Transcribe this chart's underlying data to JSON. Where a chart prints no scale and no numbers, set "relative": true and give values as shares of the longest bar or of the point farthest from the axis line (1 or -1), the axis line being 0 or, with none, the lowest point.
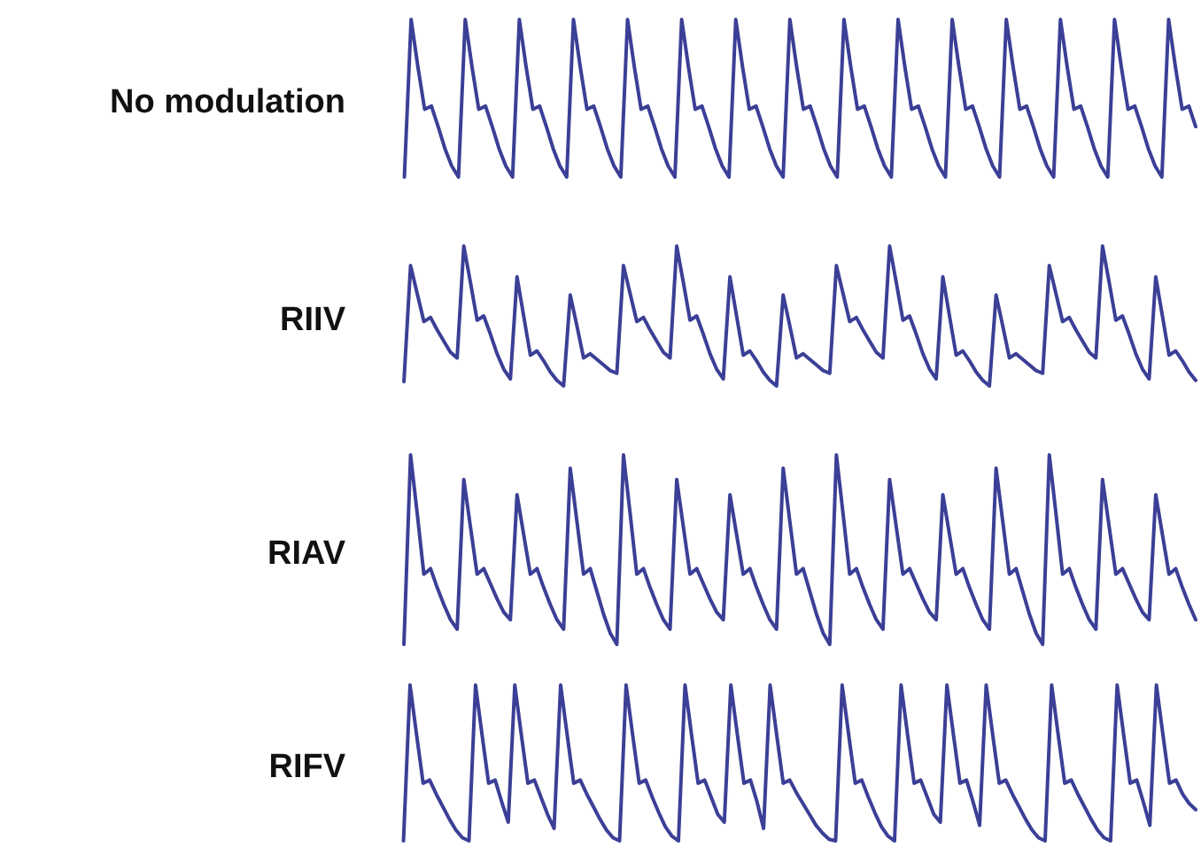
{
  "chart_data": [
    {
      "type": "line",
      "title": "No modulation",
      "relative": true,
      "marker": "none",
      "categories": [
        null,
        null,
        null,
        null,
        null,
        null,
        null,
        null,
        null,
        null,
        null,
        null,
        null,
        null,
        null,
        null,
        null,
        null,
        null,
        null,
        null,
        null,
        null,
        null,
        null,
        null,
        null,
        null,
        null,
        null,
        null,
        null,
        null,
        null,
        null,
        null,
        null,
        null,
        null,
        null,
        null,
        null,
        null,
        null,
        null,
        null,
        null,
        null,
        null,
        null,
        null,
        null,
        null,
        null,
        null,
        null,
        null,
        null,
        null,
        null,
        null,
        null,
        null,
        null,
        null,
        null,
        null,
        null,
        null,
        null,
        null,
        null,
        null,
        null,
        null,
        null,
        null,
        null,
        null,
        null,
        null,
        null,
        null,
        null,
        null,
        null,
        null,
        null,
        null,
        null,
        null,
        null,
        null,
        null,
        null,
        null,
        null,
        null,
        null,
        null,
        null,
        null,
        null,
        null,
        null,
        null,
        null,
        null,
        null,
        null,
        null,
        null,
        null,
        null,
        null,
        null,
        null,
        null,
        null,
        null,
        null,
        null
      ],
      "series": [
        {
          "color": "#3b3f96",
          "values": [
            null,
            null,
            null,
            null,
            0,
            1,
            0.7,
            0.43,
            0.45,
            0.32,
            0.18,
            0.07,
            0,
            1,
            0.7,
            0.43,
            0.45,
            0.32,
            0.18,
            0.07,
            0,
            1,
            0.7,
            0.43,
            0.45,
            0.32,
            0.18,
            0.07,
            0,
            1,
            0.7,
            0.43,
            0.45,
            0.32,
            0.18,
            0.07,
            0,
            1,
            0.7,
            0.43,
            0.45,
            0.32,
            0.18,
            0.07,
            0,
            1,
            0.7,
            0.43,
            0.45,
            0.32,
            0.18,
            0.07,
            0,
            1,
            0.7,
            0.43,
            0.45,
            0.32,
            0.18,
            0.07,
            0,
            1,
            0.7,
            0.43,
            0.45,
            0.32,
            0.18,
            0.07,
            0,
            1,
            0.7,
            0.43,
            0.45,
            0.32,
            0.18,
            0.07,
            0,
            1,
            0.7,
            0.43,
            0.45,
            0.32,
            0.18,
            0.07,
            0,
            1,
            0.7,
            0.43,
            0.45,
            0.32,
            0.18,
            0.07,
            0,
            1,
            0.7,
            0.43,
            0.45,
            0.32,
            0.18,
            0.07,
            0,
            1,
            0.7,
            0.43,
            0.45,
            0.32,
            0.18,
            0.07,
            0,
            1,
            0.7,
            0.43,
            0.45,
            0.32,
            0.18,
            0.07,
            0,
            1,
            0.7,
            0.43,
            0.45,
            0.32
          ]
        }
      ]
    },
    {
      "type": "line",
      "title": "RIIV",
      "relative": true,
      "marker": "none",
      "categories": [
        null,
        null,
        null,
        null,
        null,
        null,
        null,
        null,
        null,
        null,
        null,
        null,
        null,
        null,
        null,
        null,
        null,
        null,
        null,
        null,
        null,
        null,
        null,
        null,
        null,
        null,
        null,
        null,
        null,
        null,
        null,
        null,
        null,
        null,
        null,
        null,
        null,
        null,
        null,
        null,
        null,
        null,
        null,
        null,
        null,
        null,
        null,
        null,
        null,
        null,
        null,
        null,
        null,
        null,
        null,
        null,
        null,
        null,
        null,
        null,
        null,
        null,
        null,
        null,
        null,
        null,
        null,
        null,
        null,
        null,
        null,
        null,
        null,
        null,
        null,
        null,
        null,
        null,
        null,
        null,
        null,
        null,
        null,
        null,
        null,
        null,
        null,
        null,
        null,
        null,
        null,
        null,
        null,
        null,
        null,
        null,
        null,
        null,
        null,
        null,
        null,
        null,
        null,
        null,
        null,
        null,
        null,
        null,
        null,
        null,
        null,
        null,
        null,
        null,
        null,
        null,
        null,
        null,
        null,
        null,
        null,
        null,
        null,
        null
      ],
      "series": [
        {
          "color": "#3b3f96",
          "values": [
            null,
            null,
            null,
            null,
            0.03,
            0.86,
            0.66,
            0.46,
            0.49,
            0.4,
            0.32,
            0.24,
            0.2,
            1,
            0.74,
            0.47,
            0.5,
            0.37,
            0.23,
            0.12,
            0.05,
            0.78,
            0.5,
            0.22,
            0.25,
            0.18,
            0.1,
            0.04,
            0,
            0.65,
            0.43,
            0.2,
            0.23,
            0.19,
            0.15,
            0.11,
            0.09,
            0.86,
            0.66,
            0.46,
            0.49,
            0.4,
            0.32,
            0.24,
            0.2,
            1,
            0.74,
            0.47,
            0.5,
            0.37,
            0.23,
            0.12,
            0.05,
            0.78,
            0.5,
            0.22,
            0.25,
            0.18,
            0.1,
            0.04,
            0,
            0.65,
            0.43,
            0.2,
            0.23,
            0.19,
            0.15,
            0.11,
            0.09,
            0.86,
            0.66,
            0.46,
            0.49,
            0.4,
            0.32,
            0.24,
            0.2,
            1,
            0.74,
            0.47,
            0.5,
            0.37,
            0.23,
            0.12,
            0.05,
            0.78,
            0.5,
            0.22,
            0.25,
            0.18,
            0.1,
            0.04,
            0,
            0.65,
            0.43,
            0.2,
            0.23,
            0.19,
            0.15,
            0.11,
            0.09,
            0.86,
            0.66,
            0.46,
            0.49,
            0.4,
            0.32,
            0.24,
            0.2,
            1,
            0.74,
            0.47,
            0.5,
            0.37,
            0.23,
            0.12,
            0.05,
            0.78,
            0.5,
            0.22,
            0.25,
            0.18,
            0.1,
            0.04
          ]
        }
      ]
    },
    {
      "type": "line",
      "title": "RIAV",
      "relative": true,
      "marker": "none",
      "categories": [
        null,
        null,
        null,
        null,
        null,
        null,
        null,
        null,
        null,
        null,
        null,
        null,
        null,
        null,
        null,
        null,
        null,
        null,
        null,
        null,
        null,
        null,
        null,
        null,
        null,
        null,
        null,
        null,
        null,
        null,
        null,
        null,
        null,
        null,
        null,
        null,
        null,
        null,
        null,
        null,
        null,
        null,
        null,
        null,
        null,
        null,
        null,
        null,
        null,
        null,
        null,
        null,
        null,
        null,
        null,
        null,
        null,
        null,
        null,
        null,
        null,
        null,
        null,
        null,
        null,
        null,
        null,
        null,
        null,
        null,
        null,
        null,
        null,
        null,
        null,
        null,
        null,
        null,
        null,
        null,
        null,
        null,
        null,
        null,
        null,
        null,
        null,
        null,
        null,
        null,
        null,
        null,
        null,
        null,
        null,
        null,
        null,
        null,
        null,
        null,
        null,
        null,
        null,
        null,
        null,
        null,
        null,
        null,
        null,
        null,
        null,
        null,
        null,
        null,
        null,
        null,
        null,
        null,
        null,
        null,
        null,
        null,
        null,
        null
      ],
      "series": [
        {
          "color": "#3b3f96",
          "values": [
            null,
            null,
            null,
            null,
            0,
            1,
            0.69,
            0.37,
            0.4,
            0.3,
            0.21,
            0.13,
            0.08,
            0.87,
            0.62,
            0.37,
            0.4,
            0.32,
            0.24,
            0.17,
            0.13,
            0.79,
            0.58,
            0.37,
            0.4,
            0.3,
            0.21,
            0.13,
            0.08,
            0.93,
            0.65,
            0.37,
            0.4,
            0.28,
            0.16,
            0.06,
            0,
            1,
            0.69,
            0.37,
            0.4,
            0.3,
            0.21,
            0.13,
            0.08,
            0.87,
            0.62,
            0.37,
            0.4,
            0.32,
            0.24,
            0.17,
            0.13,
            0.79,
            0.58,
            0.37,
            0.4,
            0.3,
            0.21,
            0.13,
            0.08,
            0.93,
            0.65,
            0.37,
            0.4,
            0.28,
            0.16,
            0.06,
            0,
            1,
            0.69,
            0.37,
            0.4,
            0.3,
            0.21,
            0.13,
            0.08,
            0.87,
            0.62,
            0.37,
            0.4,
            0.32,
            0.24,
            0.17,
            0.13,
            0.79,
            0.58,
            0.37,
            0.4,
            0.3,
            0.21,
            0.13,
            0.08,
            0.93,
            0.65,
            0.37,
            0.4,
            0.28,
            0.16,
            0.06,
            0,
            1,
            0.69,
            0.37,
            0.4,
            0.3,
            0.21,
            0.13,
            0.08,
            0.87,
            0.62,
            0.37,
            0.4,
            0.32,
            0.24,
            0.17,
            0.13,
            0.79,
            0.58,
            0.37,
            0.4,
            0.3,
            0.21,
            0.13
          ]
        }
      ]
    },
    {
      "type": "line",
      "title": "RIFV",
      "relative": true,
      "marker": "none",
      "categories": [
        null,
        null,
        null,
        null,
        null,
        null,
        null,
        null,
        null,
        null,
        null,
        null,
        null,
        null,
        null,
        null,
        null,
        null,
        null,
        null,
        null,
        null,
        null,
        null,
        null,
        null,
        null,
        null,
        null,
        null,
        null,
        null,
        null,
        null,
        null,
        null,
        null,
        null,
        null,
        null,
        null,
        null,
        null,
        null,
        null,
        null,
        null,
        null,
        null,
        null,
        null,
        null,
        null,
        null,
        null,
        null,
        null,
        null,
        null,
        null,
        null,
        null,
        null,
        null,
        null,
        null,
        null,
        null,
        null,
        null,
        null,
        null,
        null,
        null,
        null,
        null,
        null,
        null,
        null,
        null,
        null,
        null,
        null,
        null,
        null,
        null,
        null,
        null,
        null,
        null,
        null,
        null,
        null,
        null,
        null,
        null,
        null,
        null,
        null,
        null,
        null,
        null,
        null,
        null,
        null,
        null,
        null,
        null,
        null,
        null,
        null,
        null,
        null,
        null,
        null,
        null,
        null,
        null,
        null,
        null,
        null,
        null,
        null,
        null,
        null,
        null
      ],
      "series": [
        {
          "color": "#3b3f96",
          "values": [
            null,
            null,
            null,
            null,
            0,
            1,
            0.68,
            0.37,
            0.39,
            0.3,
            0.22,
            0.14,
            0.07,
            0.02,
            0,
            1,
            0.68,
            0.37,
            0.39,
            0.25,
            0.12,
            1,
            0.68,
            0.37,
            0.39,
            0.28,
            0.17,
            0.08,
            1,
            0.68,
            0.37,
            0.39,
            0.3,
            0.22,
            0.14,
            0.07,
            0.02,
            0,
            1,
            0.68,
            0.37,
            0.39,
            0.28,
            0.18,
            0.09,
            0.03,
            0,
            1,
            0.68,
            0.37,
            0.39,
            0.28,
            0.17,
            0.12,
            1,
            0.68,
            0.37,
            0.39,
            0.25,
            0.08,
            1,
            0.68,
            0.37,
            0.39,
            0.31,
            0.24,
            0.17,
            0.1,
            0.05,
            0.01,
            0,
            1,
            0.68,
            0.37,
            0.39,
            0.28,
            0.18,
            0.09,
            0.03,
            0,
            1,
            0.68,
            0.37,
            0.39,
            0.28,
            0.17,
            0.12,
            1,
            0.68,
            0.37,
            0.39,
            0.25,
            0.1,
            1,
            0.68,
            0.37,
            0.39,
            0.3,
            0.22,
            0.14,
            0.07,
            0.02,
            0,
            1,
            0.68,
            0.37,
            0.39,
            0.3,
            0.22,
            0.14,
            0.07,
            0.02,
            0,
            1,
            0.68,
            0.37,
            0.39,
            0.25,
            0.1,
            1,
            0.68,
            0.37,
            0.39,
            0.3,
            0.24,
            0.2
          ]
        }
      ]
    }
  ]
}
